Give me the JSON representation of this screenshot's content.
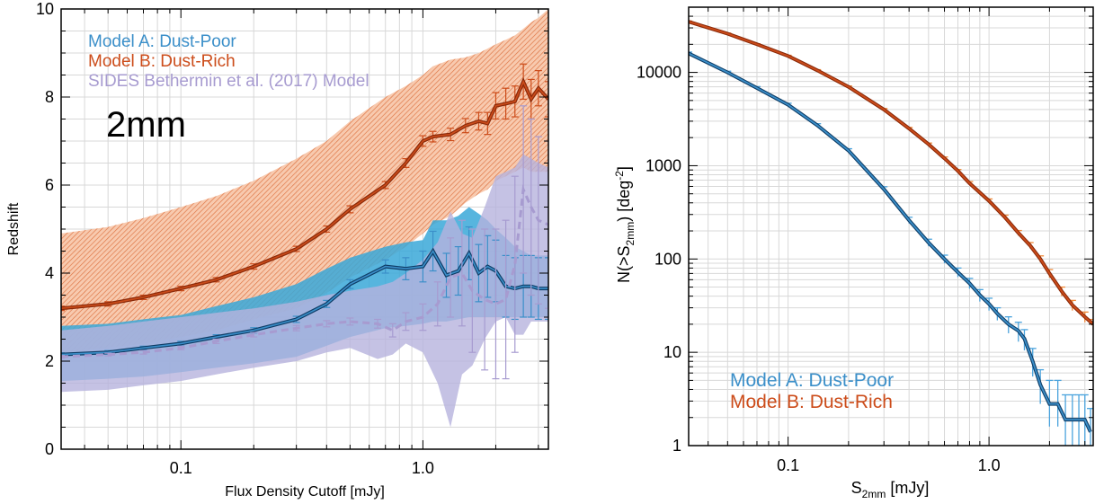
{
  "colors": {
    "model_a": "#3b8fc9",
    "model_a_dark": "#0f3d66",
    "model_a_band": "#3aa8d8",
    "model_b": "#cc4c1a",
    "model_b_dark": "#8a2a0a",
    "model_b_band": "#e98a55",
    "sides": "#a79bd0",
    "sides_band": "#b7b3dd",
    "grid": "#d8d8d8",
    "axis": "#000000"
  },
  "chart_data": [
    {
      "type": "line",
      "panel": "left",
      "annotation": "2mm",
      "xlabel": "Flux Density Cutoff [mJy]",
      "ylabel": "Redshift",
      "xscale": "log",
      "xlim": [
        0.032,
        3.3
      ],
      "ylim": [
        0,
        10
      ],
      "grid": true,
      "legend_placement": "top-left",
      "x_ticks": [
        {
          "value": 0.1,
          "label": "0.1"
        },
        {
          "value": 1.0,
          "label": "1.0"
        }
      ],
      "y_ticks": [
        {
          "value": 0,
          "label": "0"
        },
        {
          "value": 2,
          "label": "2"
        },
        {
          "value": 4,
          "label": "4"
        },
        {
          "value": 6,
          "label": "6"
        },
        {
          "value": 8,
          "label": "8"
        },
        {
          "value": 10,
          "label": "10"
        }
      ],
      "series": [
        {
          "key": "model_b",
          "name": "Model B: Dust-Rich",
          "style": "solid",
          "x": [
            0.032,
            0.05,
            0.07,
            0.1,
            0.14,
            0.2,
            0.3,
            0.4,
            0.5,
            0.7,
            0.85,
            1.0,
            1.1,
            1.3,
            1.5,
            1.7,
            1.85,
            2.0,
            2.2,
            2.4,
            2.6,
            2.8,
            3.0,
            3.3
          ],
          "y": [
            3.2,
            3.3,
            3.45,
            3.65,
            3.85,
            4.15,
            4.55,
            5.0,
            5.45,
            6.0,
            6.5,
            7.0,
            7.1,
            7.15,
            7.35,
            7.45,
            7.4,
            7.8,
            7.85,
            7.9,
            8.35,
            7.95,
            8.2,
            7.95
          ],
          "err": [
            0.05,
            0.05,
            0.05,
            0.05,
            0.05,
            0.06,
            0.06,
            0.07,
            0.08,
            0.08,
            0.1,
            0.12,
            0.12,
            0.14,
            0.16,
            0.2,
            0.25,
            0.3,
            0.35,
            0.35,
            0.4,
            0.45,
            0.4,
            0.4
          ],
          "band_lower": [
            2.2,
            2.3,
            2.4,
            2.55,
            2.7,
            2.95,
            3.2,
            3.55,
            3.9,
            4.3,
            4.6,
            4.9,
            5.1,
            5.3,
            5.6,
            5.8,
            5.9,
            6.1,
            6.2,
            6.3,
            6.4,
            6.3,
            6.3,
            6.3
          ],
          "band_upper": [
            4.9,
            5.05,
            5.25,
            5.5,
            5.75,
            6.1,
            6.6,
            7.0,
            7.45,
            8.0,
            8.25,
            8.5,
            8.7,
            8.85,
            8.9,
            9.0,
            9.1,
            9.2,
            9.3,
            9.4,
            9.55,
            9.7,
            9.8,
            10.0
          ]
        },
        {
          "key": "model_a",
          "name": "Model A: Dust-Poor",
          "style": "solid",
          "x": [
            0.032,
            0.05,
            0.07,
            0.1,
            0.14,
            0.2,
            0.3,
            0.4,
            0.5,
            0.7,
            0.85,
            1.0,
            1.1,
            1.25,
            1.4,
            1.55,
            1.7,
            1.85,
            2.0,
            2.2,
            2.4,
            2.6,
            2.8,
            3.0,
            3.3
          ],
          "y": [
            2.15,
            2.2,
            2.3,
            2.4,
            2.55,
            2.7,
            2.95,
            3.3,
            3.75,
            4.15,
            4.1,
            4.15,
            4.5,
            3.95,
            4.05,
            4.45,
            4.0,
            4.15,
            4.05,
            3.7,
            3.65,
            3.7,
            3.7,
            3.65,
            3.65
          ],
          "err": [
            0.04,
            0.04,
            0.04,
            0.05,
            0.05,
            0.06,
            0.07,
            0.08,
            0.1,
            0.15,
            0.25,
            0.35,
            0.45,
            0.5,
            0.55,
            0.6,
            0.65,
            0.7,
            0.7,
            0.7,
            0.7,
            0.7,
            0.7,
            0.7,
            0.7
          ],
          "band_lower": [
            1.55,
            1.6,
            1.65,
            1.75,
            1.85,
            1.95,
            2.1,
            2.35,
            2.55,
            2.75,
            2.8,
            2.85,
            2.9,
            2.9,
            2.95,
            3.0,
            3.0,
            3.0,
            3.0,
            3.0,
            3.0,
            3.0,
            3.0,
            3.0,
            3.0
          ],
          "band_upper": [
            2.8,
            2.85,
            2.95,
            3.05,
            3.25,
            3.45,
            3.75,
            4.1,
            4.35,
            4.6,
            4.7,
            4.75,
            5.2,
            5.2,
            5.3,
            5.5,
            5.35,
            5.2,
            5.0,
            4.8,
            4.6,
            4.5,
            4.4,
            4.4,
            4.4
          ]
        },
        {
          "key": "sides",
          "name": "SIDES Bethermin et al. (2017) Model",
          "style": "dashed",
          "x": [
            0.032,
            0.05,
            0.07,
            0.1,
            0.14,
            0.2,
            0.3,
            0.4,
            0.5,
            0.65,
            0.75,
            0.85,
            1.0,
            1.15,
            1.3,
            1.45,
            1.6,
            1.8,
            2.0,
            2.2,
            2.4,
            2.6,
            2.8,
            3.0,
            3.3
          ],
          "y": [
            2.1,
            2.15,
            2.2,
            2.3,
            2.45,
            2.6,
            2.75,
            2.85,
            2.9,
            2.85,
            2.7,
            2.9,
            3.0,
            3.3,
            3.9,
            4.0,
            3.6,
            3.4,
            3.3,
            3.4,
            4.2,
            5.9,
            5.5,
            5.2,
            5.1
          ],
          "err": [
            0.03,
            0.03,
            0.04,
            0.04,
            0.05,
            0.05,
            0.06,
            0.07,
            0.08,
            0.1,
            0.15,
            0.2,
            0.3,
            0.5,
            0.9,
            1.2,
            1.4,
            1.6,
            1.7,
            1.8,
            2.0,
            1.9,
            2.0,
            1.9,
            1.9
          ],
          "band_lower": [
            1.3,
            1.35,
            1.45,
            1.55,
            1.7,
            1.85,
            2.0,
            2.2,
            2.3,
            2.05,
            2.15,
            2.4,
            2.2,
            1.5,
            0.5,
            1.7,
            1.9,
            2.5,
            2.9,
            3.0,
            2.6,
            2.6,
            2.9,
            2.9,
            2.9
          ],
          "band_upper": [
            2.7,
            2.8,
            2.9,
            3.0,
            3.1,
            3.2,
            3.35,
            3.5,
            3.6,
            3.7,
            3.8,
            4.0,
            4.3,
            4.7,
            5.4,
            4.9,
            4.8,
            5.5,
            6.2,
            6.3,
            6.4,
            6.7,
            6.6,
            6.5,
            6.4
          ]
        }
      ]
    },
    {
      "type": "line",
      "panel": "right",
      "xlabel": "S2mm [mJy]",
      "ylabel": "N(>S2mm) [deg-2]",
      "xscale": "log",
      "yscale": "log",
      "xlim": [
        0.032,
        3.3
      ],
      "ylim": [
        1,
        50000
      ],
      "grid": true,
      "legend_placement": "bottom-left",
      "x_ticks": [
        {
          "value": 0.1,
          "label": "0.1"
        },
        {
          "value": 1.0,
          "label": "1.0"
        }
      ],
      "y_ticks": [
        {
          "value": 1,
          "label": "1"
        },
        {
          "value": 10,
          "label": "10"
        },
        {
          "value": 100,
          "label": "100"
        },
        {
          "value": 1000,
          "label": "1000"
        },
        {
          "value": 10000,
          "label": "10000"
        }
      ],
      "series": [
        {
          "key": "model_a",
          "name": "Model A: Dust-Poor",
          "x": [
            0.032,
            0.05,
            0.07,
            0.1,
            0.14,
            0.2,
            0.3,
            0.4,
            0.5,
            0.6,
            0.7,
            0.8,
            0.9,
            1.0,
            1.1,
            1.25,
            1.4,
            1.5,
            1.65,
            1.8,
            2.0,
            2.2,
            2.4,
            2.6,
            2.8,
            3.0,
            3.2
          ],
          "y": [
            16000,
            10000,
            6800,
            4500,
            2700,
            1450,
            560,
            260,
            150,
            100,
            72,
            55,
            41,
            33,
            26,
            20,
            17,
            14,
            8,
            4.5,
            2.8,
            2.8,
            1.9,
            1.9,
            1.9,
            1.9,
            1.4
          ],
          "err_lower": [
            15500,
            9700,
            6550,
            4330,
            2580,
            1380,
            525,
            240,
            137,
            90,
            64,
            48,
            35,
            28,
            22,
            16,
            13,
            10.5,
            5.5,
            2.8,
            1.6,
            1.6,
            1.0,
            1.0,
            1.0,
            1.0,
            1.0
          ],
          "err_upper": [
            16500,
            10300,
            7050,
            4670,
            2820,
            1520,
            595,
            280,
            163,
            110,
            80,
            62,
            47,
            38,
            30,
            24,
            21,
            17.5,
            11,
            6.5,
            5,
            5,
            3.5,
            3.5,
            3.5,
            3.5,
            2.5
          ]
        },
        {
          "key": "model_b",
          "name": "Model B: Dust-Rich",
          "x": [
            0.032,
            0.05,
            0.07,
            0.1,
            0.14,
            0.2,
            0.3,
            0.4,
            0.5,
            0.6,
            0.7,
            0.8,
            1.0,
            1.2,
            1.4,
            1.6,
            1.8,
            2.0,
            2.3,
            2.6,
            3.0,
            3.3
          ],
          "y": [
            35000,
            26000,
            20000,
            15000,
            10500,
            7000,
            4000,
            2500,
            1700,
            1200,
            880,
            650,
            420,
            280,
            190,
            140,
            100,
            70,
            45,
            32,
            24,
            20
          ],
          "err_lower": [
            34500,
            25600,
            19700,
            14750,
            10300,
            6850,
            3900,
            2430,
            1650,
            1160,
            850,
            625,
            400,
            265,
            178,
            130,
            92,
            63,
            40,
            28,
            21,
            17.5
          ],
          "err_upper": [
            35500,
            26400,
            20300,
            15250,
            10700,
            7150,
            4100,
            2570,
            1750,
            1240,
            910,
            675,
            440,
            295,
            202,
            150,
            108,
            77,
            50,
            36,
            27,
            22.5
          ]
        }
      ]
    }
  ],
  "labels": {
    "left_annotation": "2mm",
    "left_xlabel": "Flux Density Cutoff [mJy]",
    "left_ylabel": "Redshift",
    "right_xlabel_main": "S",
    "right_xlabel_sub": "2mm",
    "right_xlabel_rest": " [mJy]",
    "right_ylabel_pre": "N(>S",
    "right_ylabel_sub": "2mm",
    "right_ylabel_mid": ") [deg",
    "right_ylabel_sup": "-2",
    "right_ylabel_post": "]"
  },
  "legend_left": [
    {
      "key": "model_a",
      "label": "Model A: Dust-Poor"
    },
    {
      "key": "model_b",
      "label": "Model B: Dust-Rich"
    },
    {
      "key": "sides",
      "label": "SIDES Bethermin et al. (2017) Model"
    }
  ],
  "legend_right": [
    {
      "key": "model_a",
      "label": "Model A: Dust-Poor"
    },
    {
      "key": "model_b",
      "label": "Model B: Dust-Rich"
    }
  ]
}
